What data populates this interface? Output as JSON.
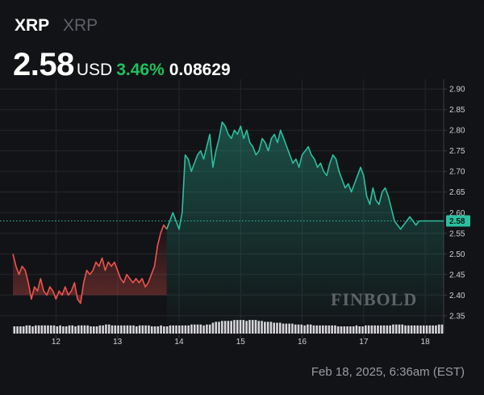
{
  "header": {
    "symbol": "XRP",
    "name": "XRP",
    "price": "2.58",
    "currency": "USD",
    "change_pct": "3.46%",
    "change_abs": "0.08629"
  },
  "footer": {
    "timestamp": "Feb 18, 2025, 6:36am (EST)"
  },
  "watermark": "FINBOLD",
  "colors": {
    "up": "#2bbfa0",
    "down": "#f0534d",
    "change_positive": "#20c05c",
    "volume": "#d7d7db",
    "last_price_badge": "#2bbfa0"
  },
  "chart_data": {
    "type": "line",
    "x_tick_labels": [
      "12",
      "13",
      "14",
      "15",
      "16",
      "17",
      "18"
    ],
    "x_range": [
      11.3,
      18.3
    ],
    "ylim": [
      2.33,
      2.92
    ],
    "y_tick_labels": [
      "2.90",
      "2.85",
      "2.80",
      "2.75",
      "2.70",
      "2.65",
      "2.60",
      "2.55",
      "2.50",
      "2.45",
      "2.40",
      "2.35"
    ],
    "y_ticks": [
      2.9,
      2.85,
      2.8,
      2.75,
      2.7,
      2.65,
      2.6,
      2.55,
      2.5,
      2.45,
      2.4,
      2.35
    ],
    "reference_value": 2.58,
    "last_price_label": "2.58",
    "grid": true,
    "series": [
      {
        "x": [
          11.3,
          11.35,
          11.4,
          11.45,
          11.5,
          11.55,
          11.6,
          11.65,
          11.7,
          11.75,
          11.8,
          11.85,
          11.9,
          11.95,
          12.0,
          12.05,
          12.1,
          12.15,
          12.2,
          12.25,
          12.3,
          12.35,
          12.4,
          12.45,
          12.5,
          12.55,
          12.6,
          12.65,
          12.7,
          12.75,
          12.8,
          12.85,
          12.9,
          12.95,
          13.0,
          13.05,
          13.1,
          13.15,
          13.2,
          13.25,
          13.3,
          13.35,
          13.4,
          13.45,
          13.5,
          13.55,
          13.6,
          13.65,
          13.7,
          13.75,
          13.8,
          13.85,
          13.9,
          13.95,
          14.0,
          14.05,
          14.1,
          14.15,
          14.2,
          14.25,
          14.3,
          14.35,
          14.4,
          14.45,
          14.5,
          14.55,
          14.6,
          14.65,
          14.7,
          14.75,
          14.8,
          14.85,
          14.9,
          14.95,
          15.0,
          15.05,
          15.1,
          15.15,
          15.2,
          15.25,
          15.3,
          15.35,
          15.4,
          15.45,
          15.5,
          15.55,
          15.6,
          15.65,
          15.7,
          15.75,
          15.8,
          15.85,
          15.9,
          15.95,
          16.0,
          16.05,
          16.1,
          16.15,
          16.2,
          16.25,
          16.3,
          16.35,
          16.4,
          16.45,
          16.5,
          16.55,
          16.6,
          16.65,
          16.7,
          16.75,
          16.8,
          16.85,
          16.9,
          16.95,
          17.0,
          17.05,
          17.1,
          17.15,
          17.2,
          17.25,
          17.3,
          17.35,
          17.4,
          17.45,
          17.5,
          17.55,
          17.6,
          17.65,
          17.7,
          17.75,
          17.8,
          17.85,
          17.9,
          17.95,
          18.0,
          18.05,
          18.1,
          18.15,
          18.2,
          18.25,
          18.3
        ],
        "y": [
          2.5,
          2.47,
          2.45,
          2.47,
          2.46,
          2.43,
          2.39,
          2.42,
          2.41,
          2.44,
          2.41,
          2.4,
          2.42,
          2.41,
          2.39,
          2.41,
          2.4,
          2.42,
          2.4,
          2.41,
          2.43,
          2.39,
          2.38,
          2.43,
          2.46,
          2.45,
          2.46,
          2.48,
          2.47,
          2.49,
          2.46,
          2.48,
          2.47,
          2.48,
          2.46,
          2.44,
          2.43,
          2.45,
          2.44,
          2.43,
          2.44,
          2.43,
          2.44,
          2.42,
          2.43,
          2.45,
          2.47,
          2.52,
          2.55,
          2.57,
          2.56,
          2.58,
          2.6,
          2.58,
          2.56,
          2.6,
          2.74,
          2.73,
          2.7,
          2.72,
          2.74,
          2.75,
          2.73,
          2.76,
          2.79,
          2.71,
          2.75,
          2.78,
          2.82,
          2.81,
          2.79,
          2.78,
          2.8,
          2.79,
          2.81,
          2.78,
          2.8,
          2.77,
          2.76,
          2.74,
          2.75,
          2.78,
          2.77,
          2.75,
          2.78,
          2.79,
          2.77,
          2.8,
          2.78,
          2.76,
          2.74,
          2.72,
          2.73,
          2.71,
          2.74,
          2.75,
          2.76,
          2.74,
          2.73,
          2.71,
          2.72,
          2.7,
          2.69,
          2.72,
          2.74,
          2.73,
          2.7,
          2.68,
          2.66,
          2.67,
          2.65,
          2.67,
          2.69,
          2.71,
          2.69,
          2.64,
          2.62,
          2.66,
          2.63,
          2.62,
          2.65,
          2.66,
          2.64,
          2.61,
          2.58,
          2.57,
          2.56,
          2.57,
          2.58,
          2.59,
          2.58,
          2.57,
          2.58,
          2.58,
          2.58,
          2.58,
          2.58,
          2.58,
          2.58,
          2.58,
          2.58
        ],
        "y_note_style": "green above 2.50 threshold after breakout; red before"
      }
    ],
    "volume": [
      8,
      8,
      8,
      8,
      9,
      9,
      8,
      9,
      9,
      9,
      9,
      9,
      9,
      9,
      8,
      9,
      8,
      8,
      9,
      9,
      8,
      9,
      9,
      9,
      9,
      8,
      8,
      8,
      9,
      9,
      10,
      10,
      9,
      9,
      9,
      9,
      9,
      9,
      9,
      9,
      8,
      9,
      9,
      9,
      9,
      8,
      8,
      8,
      9,
      8,
      8,
      9,
      9,
      9,
      9,
      9,
      9,
      9,
      10,
      10,
      10,
      10,
      9,
      10,
      10,
      12,
      13,
      13,
      14,
      14,
      14,
      14,
      15,
      15,
      15,
      15,
      14,
      15,
      15,
      15,
      14,
      14,
      13,
      13,
      13,
      12,
      12,
      12,
      11,
      11,
      11,
      11,
      10,
      10,
      10,
      9,
      10,
      10,
      9,
      9,
      9,
      9,
      9,
      9,
      9,
      9,
      8,
      8,
      8,
      8,
      8,
      8,
      9,
      8,
      8,
      9,
      9,
      9,
      9,
      9,
      9,
      9,
      9,
      9,
      10,
      10,
      10,
      10,
      9,
      9,
      9,
      9,
      9,
      9,
      9,
      9,
      9,
      9,
      9,
      10,
      10
    ],
    "volume_max": 16
  }
}
